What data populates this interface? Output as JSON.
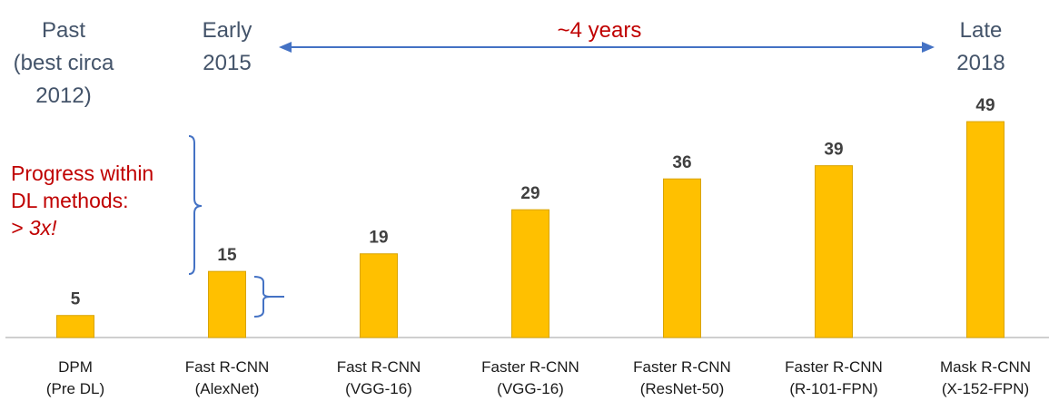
{
  "annotations": {
    "era_past": "Past\n(best circa\n2012)",
    "era_early": "Early\n2015",
    "era_late": "Late\n2018",
    "span_label": "~4 years",
    "progress_line1": "Progress within",
    "progress_line2": "DL methods:",
    "progress_line3": "> 3x!"
  },
  "colors": {
    "bar": "#ffc000",
    "bar_border": "#d9a400",
    "axis": "#bfbfbf",
    "bracket": "#4472c4",
    "era_text": "#44546a",
    "highlight_text": "#c00000"
  },
  "chart_data": {
    "type": "bar",
    "title": "",
    "xlabel": "",
    "ylabel": "",
    "ylim": [
      0,
      52
    ],
    "grid": false,
    "legend": "none",
    "categories": [
      {
        "line1": "DPM",
        "line2": "(Pre DL)"
      },
      {
        "line1": "Fast R-CNN",
        "line2": "(AlexNet)"
      },
      {
        "line1": "Fast R-CNN",
        "line2": "(VGG-16)"
      },
      {
        "line1": "Faster R-CNN",
        "line2": "(VGG-16)"
      },
      {
        "line1": "Faster R-CNN",
        "line2": "(ResNet-50)"
      },
      {
        "line1": "Faster R-CNN",
        "line2": "(R-101-FPN)"
      },
      {
        "line1": "Mask R-CNN",
        "line2": "(X-152-FPN)"
      }
    ],
    "values": [
      5,
      15,
      19,
      29,
      36,
      39,
      49
    ]
  }
}
